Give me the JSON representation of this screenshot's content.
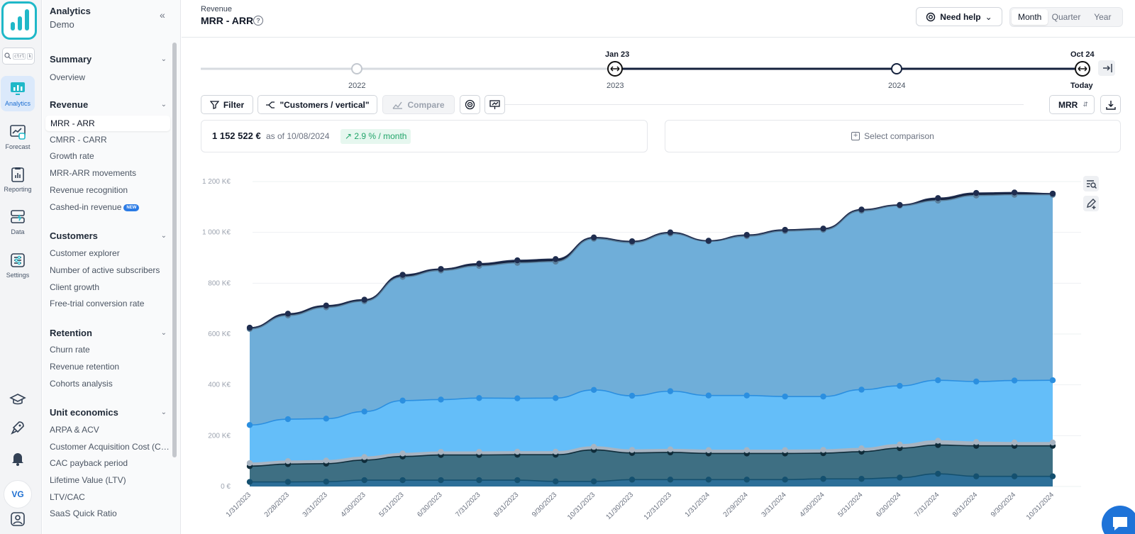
{
  "app": {
    "name": "Analytics",
    "workspace": "Demo"
  },
  "search": {
    "kbd1": "ctrl",
    "kbd2": "k"
  },
  "rail": [
    {
      "label": "Analytics",
      "icon": "analytics-icon"
    },
    {
      "label": "Forecast",
      "icon": "forecast-icon"
    },
    {
      "label": "Reporting",
      "icon": "reporting-icon"
    },
    {
      "label": "Data",
      "icon": "data-icon"
    },
    {
      "label": "Settings",
      "icon": "settings-icon"
    }
  ],
  "user": {
    "initials": "VG"
  },
  "menu": {
    "sections": [
      {
        "title": "Summary",
        "items": [
          "Overview"
        ]
      },
      {
        "title": "Revenue",
        "items": [
          "MRR - ARR",
          "CMRR - CARR",
          "Growth rate",
          "MRR-ARR movements",
          "Revenue recognition",
          "Cashed-in revenue"
        ]
      },
      {
        "title": "Customers",
        "items": [
          "Customer explorer",
          "Number of active subscribers",
          "Client growth",
          "Free-trial conversion rate"
        ]
      },
      {
        "title": "Retention",
        "items": [
          "Churn rate",
          "Revenue retention",
          "Cohorts analysis"
        ]
      },
      {
        "title": "Unit economics",
        "items": [
          "ARPA & ACV",
          "Customer Acquisition Cost (CAC)",
          "CAC payback period",
          "Lifetime Value (LTV)",
          "LTV/CAC",
          "SaaS Quick Ratio"
        ]
      }
    ],
    "new_badge": "NEW"
  },
  "header": {
    "breadcrumb": "Revenue",
    "title": "MRR - ARR",
    "help": "Need help",
    "periods": [
      "Month",
      "Quarter",
      "Year"
    ],
    "active_period": "Month"
  },
  "timeline": {
    "years": [
      "2022",
      "2023",
      "2024",
      "Today"
    ],
    "start_label": "Jan 23",
    "end_label": "Oct 24"
  },
  "toolbar": {
    "filter": "Filter",
    "group": "\"Customers / vertical\"",
    "compare": "Compare",
    "metric": "MRR"
  },
  "kpi": {
    "value": "1 152 522 €",
    "as_of": "as of 10/08/2024",
    "growth": "2.9 % / month"
  },
  "comparison": {
    "label": "Select comparison"
  },
  "colors": {
    "accent": "#1e73d8",
    "navy": "#14213d",
    "area_top": "#6faed9",
    "area_mid": "#64bef9",
    "area_dark": "#3e6f83",
    "area_light_band": "#a7b4c2",
    "area_bottom": "#2d6f98"
  },
  "chart_data": {
    "type": "area",
    "stacked": true,
    "x": [
      "1/31/2023",
      "2/28/2023",
      "3/31/2023",
      "4/30/2023",
      "5/31/2023",
      "6/30/2023",
      "7/31/2023",
      "8/31/2023",
      "9/30/2023",
      "10/31/2023",
      "11/30/2023",
      "12/31/2023",
      "1/31/2024",
      "2/29/2024",
      "3/31/2024",
      "4/30/2024",
      "5/31/2024",
      "6/30/2024",
      "7/31/2024",
      "8/31/2024",
      "9/30/2024",
      "10/31/2024"
    ],
    "ylim": [
      0,
      1200000
    ],
    "y_ticks": [
      "0 €",
      "200 K€",
      "400 K€",
      "600 K€",
      "800 K€",
      "1 000 K€",
      "1 200 K€"
    ],
    "grid": true,
    "cumulative_series": [
      {
        "level": 1,
        "values": [
          18000,
          18000,
          19000,
          25000,
          25000,
          25000,
          25000,
          25000,
          20000,
          20000,
          27000,
          27000,
          27000,
          27000,
          27000,
          30000,
          30000,
          35000,
          50000,
          40000,
          40000,
          40000
        ]
      },
      {
        "level": 2,
        "values": [
          80000,
          88000,
          90000,
          104000,
          118000,
          124000,
          124000,
          125000,
          125000,
          144000,
          132000,
          134000,
          130000,
          130000,
          130000,
          131000,
          137000,
          151000,
          163000,
          160000,
          160000,
          160000
        ]
      },
      {
        "level": 3,
        "values": [
          92000,
          100000,
          102000,
          116000,
          130000,
          136000,
          136000,
          137000,
          137000,
          156000,
          144000,
          146000,
          143000,
          143000,
          143000,
          144000,
          150000,
          165000,
          180000,
          175000,
          173000,
          173000
        ]
      },
      {
        "level": 4,
        "values": [
          242000,
          265000,
          267000,
          295000,
          338000,
          342000,
          348000,
          347000,
          348000,
          380000,
          357000,
          375000,
          358000,
          358000,
          354000,
          354000,
          381000,
          396000,
          418000,
          413000,
          417000,
          418000
        ]
      },
      {
        "level": 5,
        "values": [
          620000,
          673000,
          705000,
          729000,
          825000,
          850000,
          868000,
          880000,
          885000,
          975000,
          960000,
          995000,
          965000,
          985000,
          1005000,
          1010000,
          1085000,
          1105000,
          1125000,
          1145000,
          1148000,
          1148000
        ]
      },
      {
        "level": 6,
        "values": [
          625000,
          680000,
          712000,
          735000,
          833000,
          856000,
          877000,
          890000,
          895000,
          980000,
          965000,
          1000000,
          967000,
          990000,
          1010000,
          1015000,
          1090000,
          1108000,
          1135000,
          1155000,
          1157000,
          1152522
        ]
      }
    ]
  }
}
